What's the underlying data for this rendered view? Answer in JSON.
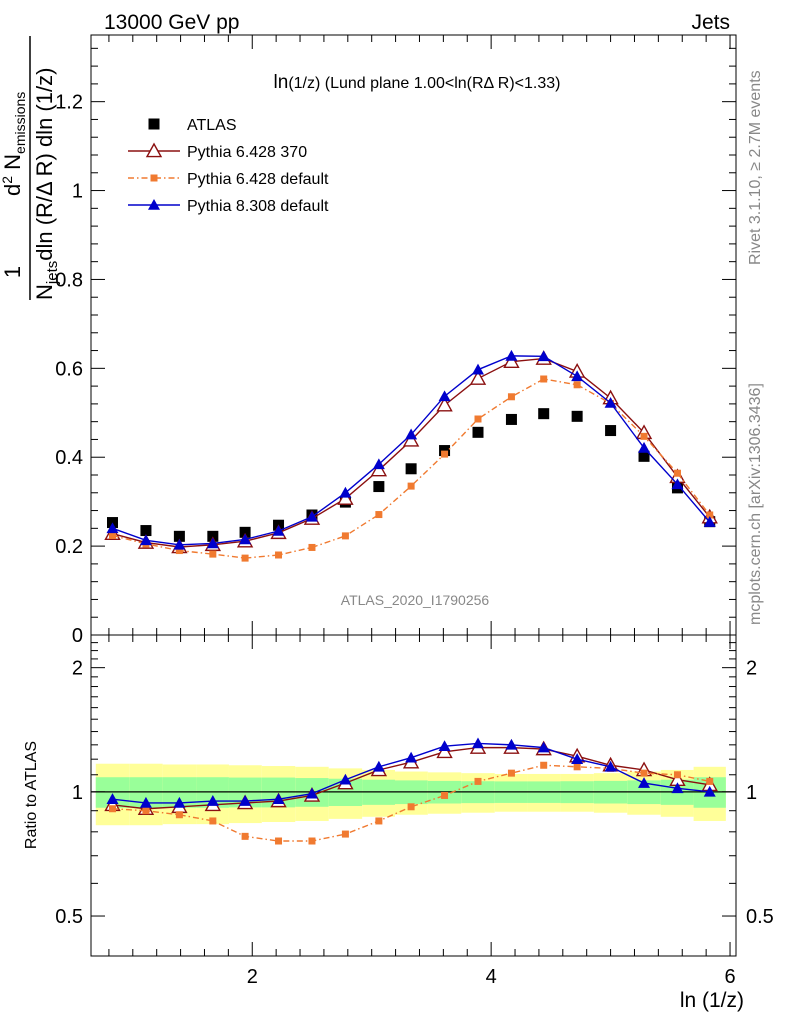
{
  "header": {
    "left": "13000 GeV pp",
    "right": "Jets"
  },
  "plot_title": {
    "main": "ln",
    "sub": "(1/z)",
    "rest": " (Lund plane 1.00<ln(RΔ R)<1.33)"
  },
  "side_labels": {
    "rivet": "Rivet 3.1.10, ≥ 2.7M events",
    "mcplots": "mcplots.cern.ch [arXiv:1306.3436]"
  },
  "watermark": "ATLAS_2020_I1790256",
  "ylabel_main": {
    "one": "1",
    "njets_N": "N",
    "njets_sub": "jets",
    "den_rest": "dln (R/Δ R) dln (1/z)",
    "num_d": "d",
    "num_sup": "2",
    "num_N": " N",
    "num_sub": "emissions"
  },
  "ylabel_ratio": "Ratio to ATLAS",
  "xlabel": "ln (1/z)",
  "colors": {
    "data": "#000000",
    "pythia6_370": "#8b1010",
    "pythia6_default": "#f07a30",
    "pythia8_default": "#0000cc",
    "band_green": "#99ff99",
    "band_yellow": "#ffff99"
  },
  "chart_data": [
    {
      "type": "line",
      "panel": "main",
      "xlim": [
        0.65,
        6.05
      ],
      "ylim": [
        0,
        1.35
      ],
      "y_ticks": [
        "0",
        "0.2",
        "0.4",
        "0.6",
        "0.8",
        "1",
        "1.2"
      ],
      "x": [
        0.83,
        1.11,
        1.39,
        1.67,
        1.94,
        2.22,
        2.5,
        2.78,
        3.06,
        3.33,
        3.61,
        3.89,
        4.17,
        4.44,
        4.72,
        5.0,
        5.28,
        5.56,
        5.83
      ],
      "series": [
        {
          "name": "ATLAS",
          "key": "data",
          "marker": "square",
          "values": [
            0.253,
            0.235,
            0.222,
            0.222,
            0.231,
            0.247,
            0.27,
            0.299,
            0.334,
            0.374,
            0.415,
            0.456,
            0.485,
            0.498,
            0.492,
            0.46,
            0.402,
            0.331,
            0.255
          ]
        },
        {
          "name": "Pythia 6.428 370",
          "key": "pythia6_370",
          "marker": "triangle-open",
          "values": [
            0.228,
            0.208,
            0.198,
            0.203,
            0.211,
            0.23,
            0.262,
            0.307,
            0.371,
            0.438,
            0.517,
            0.577,
            0.615,
            0.622,
            0.593,
            0.533,
            0.455,
            0.356,
            0.265
          ]
        },
        {
          "name": "Pythia 6.428 default",
          "key": "pythia6_default",
          "marker": "square-small",
          "values": [
            0.224,
            0.205,
            0.19,
            0.182,
            0.173,
            0.18,
            0.197,
            0.223,
            0.271,
            0.335,
            0.407,
            0.486,
            0.536,
            0.576,
            0.563,
            0.521,
            0.447,
            0.364,
            0.27
          ]
        },
        {
          "name": "Pythia 8.308 default",
          "key": "pythia8_default",
          "marker": "triangle-filled",
          "values": [
            0.24,
            0.213,
            0.203,
            0.206,
            0.215,
            0.234,
            0.266,
            0.32,
            0.384,
            0.451,
            0.537,
            0.597,
            0.628,
            0.627,
            0.582,
            0.522,
            0.421,
            0.339,
            0.254
          ]
        }
      ]
    },
    {
      "type": "line",
      "panel": "ratio",
      "xlim": [
        0.65,
        6.05
      ],
      "ylim": [
        0.4,
        2.4
      ],
      "log_y": true,
      "y_ticks": [
        "0.5",
        "1",
        "2"
      ],
      "x_ticks": [
        "2",
        "4",
        "6"
      ],
      "x": [
        0.83,
        1.11,
        1.39,
        1.67,
        1.94,
        2.22,
        2.5,
        2.78,
        3.06,
        3.33,
        3.61,
        3.89,
        4.17,
        4.44,
        4.72,
        5.0,
        5.28,
        5.56,
        5.83
      ],
      "band_green_halfwidth": [
        0.085,
        0.085,
        0.085,
        0.085,
        0.083,
        0.083,
        0.08,
        0.076,
        0.07,
        0.066,
        0.063,
        0.061,
        0.06,
        0.06,
        0.061,
        0.063,
        0.066,
        0.07,
        0.085
      ],
      "band_yellow_halfwidth": [
        0.17,
        0.17,
        0.165,
        0.165,
        0.16,
        0.155,
        0.15,
        0.14,
        0.13,
        0.12,
        0.115,
        0.11,
        0.105,
        0.105,
        0.105,
        0.11,
        0.12,
        0.13,
        0.15
      ],
      "series": [
        {
          "name": "Pythia 6.428 370",
          "key": "pythia6_370",
          "marker": "triangle-open",
          "values": [
            0.93,
            0.91,
            0.92,
            0.93,
            0.94,
            0.95,
            0.98,
            1.05,
            1.13,
            1.18,
            1.25,
            1.28,
            1.28,
            1.27,
            1.22,
            1.16,
            1.13,
            1.07,
            1.04
          ]
        },
        {
          "name": "Pythia 6.428 default",
          "key": "pythia6_default",
          "marker": "square-small",
          "values": [
            0.91,
            0.9,
            0.88,
            0.85,
            0.78,
            0.76,
            0.76,
            0.79,
            0.85,
            0.92,
            0.98,
            1.06,
            1.11,
            1.16,
            1.15,
            1.14,
            1.11,
            1.1,
            1.06
          ]
        },
        {
          "name": "Pythia 8.308 default",
          "key": "pythia8_default",
          "marker": "triangle-filled",
          "values": [
            0.96,
            0.94,
            0.94,
            0.95,
            0.95,
            0.96,
            0.99,
            1.07,
            1.15,
            1.21,
            1.29,
            1.31,
            1.3,
            1.28,
            1.2,
            1.15,
            1.05,
            1.02,
            1.0
          ]
        }
      ]
    }
  ]
}
